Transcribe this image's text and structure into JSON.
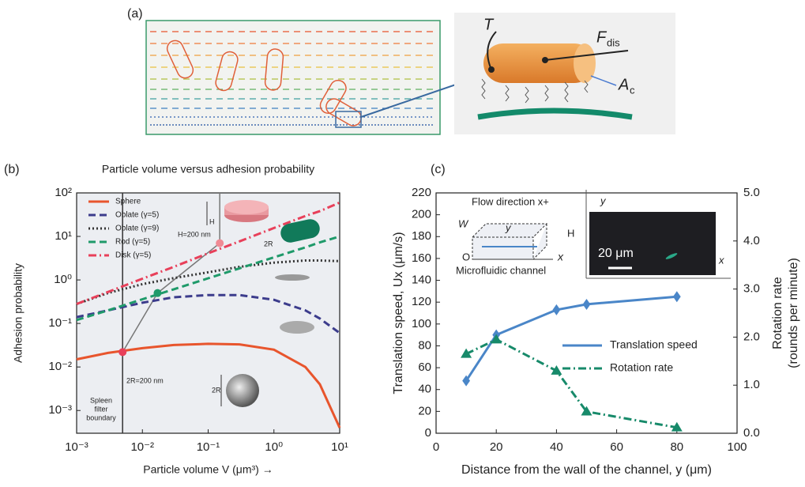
{
  "panel_a": {
    "label": "(a)",
    "torque": "T",
    "force": "F",
    "force_sub": "dis",
    "area": "A",
    "area_sub": "c"
  },
  "chart_data": [
    {
      "type": "line",
      "panel_label": "(b)",
      "title": "Particle volume versus adhesion probability",
      "xlabel": "Particle volume V (μm³) →",
      "ylabel": "Adhesion probability",
      "xscale": "log",
      "yscale": "log",
      "xlim": [
        0.001,
        10
      ],
      "ylim": [
        0.0003,
        100
      ],
      "xticks": [
        {
          "value": 0.001,
          "label": "10⁻³"
        },
        {
          "value": 0.01,
          "label": "10⁻²"
        },
        {
          "value": 0.1,
          "label": "10⁻¹"
        },
        {
          "value": 1,
          "label": "10⁰"
        },
        {
          "value": 10,
          "label": "10¹"
        }
      ],
      "yticks": [
        {
          "value": 0.001,
          "label": "10⁻³"
        },
        {
          "value": 0.01,
          "label": "10⁻²"
        },
        {
          "value": 0.1,
          "label": "10⁻¹"
        },
        {
          "value": 1,
          "label": "10⁰"
        },
        {
          "value": 10,
          "label": "10¹"
        },
        {
          "value": 100,
          "label": "10²"
        }
      ],
      "x": [
        0.001,
        0.003,
        0.01,
        0.03,
        0.1,
        0.3,
        1,
        3,
        5,
        10
      ],
      "series": [
        {
          "name": "Sphere",
          "color": "#e8552d",
          "dash": "solid",
          "values": [
            0.015,
            0.021,
            0.027,
            0.032,
            0.034,
            0.033,
            0.025,
            0.01,
            0.004,
            0.0004
          ]
        },
        {
          "name": "Oblate (γ=5)",
          "color": "#3c3c8c",
          "dash": "dashed",
          "values": [
            0.14,
            0.2,
            0.3,
            0.4,
            0.45,
            0.45,
            0.35,
            0.2,
            0.13,
            0.06
          ]
        },
        {
          "name": "Oblate (γ=9)",
          "color": "#333333",
          "dash": "dotted",
          "values": [
            0.28,
            0.5,
            0.8,
            1.1,
            1.5,
            2,
            2.5,
            2.8,
            2.8,
            2.7
          ]
        },
        {
          "name": "Rod (γ=5)",
          "color": "#1f9a6a",
          "dash": "dashed",
          "values": [
            0.12,
            0.2,
            0.36,
            0.61,
            1.09,
            1.85,
            3.3,
            5.6,
            7.3,
            10
          ]
        },
        {
          "name": "Disk (γ=5)",
          "color": "#e8405a",
          "dash": "dashdot",
          "values": [
            0.28,
            0.53,
            1.07,
            2,
            4.1,
            7.7,
            15.6,
            29.5,
            38,
            60
          ]
        }
      ],
      "boundary_x": 0.005,
      "boundary_label": [
        "Spleen",
        "filter",
        "boundary"
      ],
      "markers": [
        {
          "x": 0.005,
          "y": 0.022,
          "color": "#e8405a"
        },
        {
          "x": 0.017,
          "y": 0.5,
          "color": "#1f9a6a"
        },
        {
          "x": 0.15,
          "y": 7,
          "color": "#f08a94"
        }
      ],
      "annotations": {
        "sphere_size": "2R=200 nm",
        "disk_size": "H=200 nm",
        "rod_r": "2R",
        "disk_h": "H",
        "sphere_r": "2R"
      }
    },
    {
      "type": "line",
      "panel_label": "(c)",
      "xlabel": "Distance from the wall of the channel, y (μm)",
      "ylabel": "Translation speed, Ux (μm/s)",
      "y2label": [
        "Rotation rate",
        "(rounds per minute)"
      ],
      "xlim": [
        0,
        100
      ],
      "ylim": [
        0,
        220
      ],
      "y2lim": [
        0,
        5
      ],
      "xticks": [
        0,
        20,
        40,
        60,
        80,
        100
      ],
      "yticks": [
        0,
        20,
        40,
        60,
        80,
        100,
        120,
        140,
        160,
        180,
        200,
        220
      ],
      "y2ticks": [
        {
          "value": 0,
          "label": "0.0"
        },
        {
          "value": 1,
          "label": "1.0"
        },
        {
          "value": 2,
          "label": "2.0"
        },
        {
          "value": 3,
          "label": "3.0"
        },
        {
          "value": 4,
          "label": "4.0"
        },
        {
          "value": 5,
          "label": "5.0"
        }
      ],
      "x": [
        10,
        20,
        40,
        50,
        80
      ],
      "series": [
        {
          "name": "Translation speed",
          "color": "#4a86c8",
          "dash": "solid",
          "marker": "diamond",
          "values": [
            48,
            90,
            113,
            118,
            125
          ]
        },
        {
          "name": "Rotation rate",
          "color": "#178a6a",
          "dash": "dashdot",
          "marker": "triangle",
          "axis": "y2",
          "values": [
            1.65,
            1.95,
            1.3,
            0.45,
            0.12
          ]
        }
      ],
      "legend": "lower right",
      "inset": {
        "flow": "Flow direction x+",
        "w": "W",
        "y": "y",
        "h": "H",
        "o": "O",
        "x": "x",
        "caption": "Microfluidic channel",
        "scale": "20 μm",
        "img_y": "y",
        "img_x": "x"
      }
    }
  ]
}
